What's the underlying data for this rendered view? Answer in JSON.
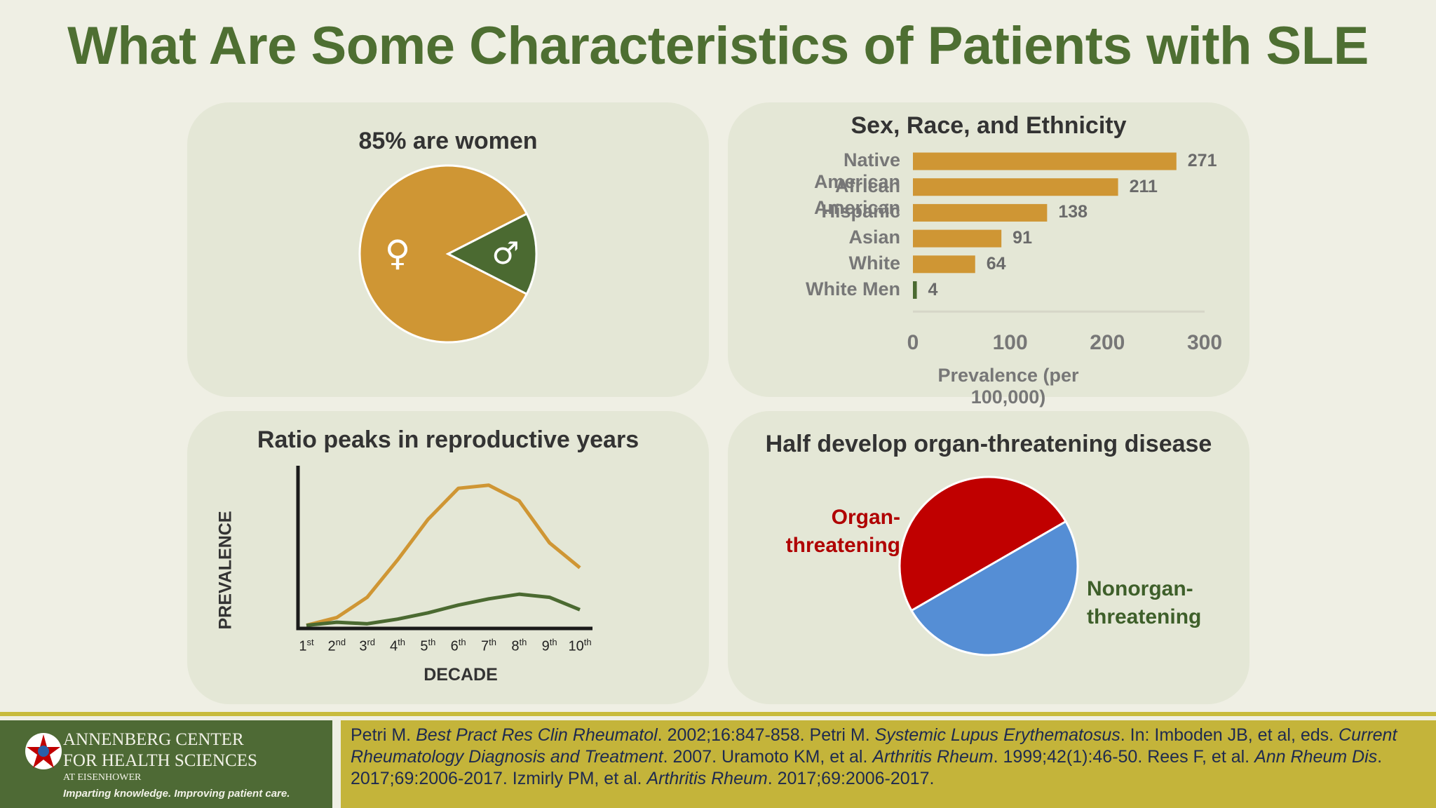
{
  "title": "What Are Some Characteristics of Patients with SLE",
  "panels": {
    "women": {
      "title": "85% are women",
      "female_symbol": "♀",
      "male_symbol": "♂"
    },
    "sex_race": {
      "title": "Sex, Race, and Ethnicity",
      "xlabel": "Prevalence (per 100,000)"
    },
    "ratio": {
      "title": "Ratio peaks in reproductive years",
      "ylabel": "PREVALENCE",
      "xlabel": "DECADE"
    },
    "organ": {
      "title": "Half develop organ-threatening disease",
      "label_organ_1": "Organ-",
      "label_organ_2": "threatening",
      "label_non_1": "Nonorgan-",
      "label_non_2": "threatening"
    }
  },
  "chart_data": [
    {
      "type": "pie",
      "title": "85% are women",
      "slices": [
        {
          "label": "♀",
          "value": 85,
          "color": "#cf9634"
        },
        {
          "label": "♂",
          "value": 15,
          "color": "#4b6a31"
        }
      ]
    },
    {
      "type": "bar",
      "orientation": "horizontal",
      "title": "Sex, Race, and Ethnicity",
      "categories": [
        "Native American",
        "African American",
        "Hispanic",
        "Asian",
        "White",
        "White Men"
      ],
      "values": [
        271,
        211,
        138,
        91,
        64,
        4
      ],
      "value_labels": [
        "271",
        "211",
        "138",
        "91",
        "64",
        "4"
      ],
      "xlabel": "Prevalence (per 100,000)",
      "xlim": [
        0,
        300
      ],
      "xticks": [
        "0",
        "100",
        "200",
        "300"
      ],
      "bar_color": "#cf9634",
      "last_bar_color": "#4b6a31"
    },
    {
      "type": "line",
      "title": "Ratio peaks in reproductive years",
      "xlabel": "DECADE",
      "ylabel": "PREVALENCE",
      "categories": [
        {
          "n": "1",
          "s": "st"
        },
        {
          "n": "2",
          "s": "nd"
        },
        {
          "n": "3",
          "s": "rd"
        },
        {
          "n": "4",
          "s": "th"
        },
        {
          "n": "5",
          "s": "th"
        },
        {
          "n": "6",
          "s": "th"
        },
        {
          "n": "7",
          "s": "th"
        },
        {
          "n": "8",
          "s": "th"
        },
        {
          "n": "9",
          "s": "th"
        },
        {
          "n": "10",
          "s": "th"
        }
      ],
      "ylim": [
        0,
        100
      ],
      "series": [
        {
          "values": [
            2,
            7,
            20,
            44,
            70,
            90,
            92,
            82,
            55,
            39
          ],
          "color": "#cf9634"
        },
        {
          "values": [
            2,
            4,
            3,
            6,
            10,
            15,
            19,
            22,
            20,
            12
          ],
          "color": "#4b6a31"
        }
      ]
    },
    {
      "type": "pie",
      "title": "Half develop organ-threatening disease",
      "slices": [
        {
          "label": "Organ-threatening",
          "value": 50,
          "color": "#c00000"
        },
        {
          "label": "Nonorgan-threatening",
          "value": 50,
          "color": "#558ed5"
        }
      ]
    }
  ],
  "colors": {
    "title": "#4e6f32",
    "organ_label": "#b00000",
    "non_label": "#3e5f2a"
  },
  "footer": {
    "logo_line1": "ANNENBERG CENTER",
    "logo_line2": "FOR HEALTH SCIENCES",
    "logo_line3": "AT EISENHOWER",
    "logo_tagline": "Imparting knowledge. Improving patient care.",
    "refs": [
      {
        "t": "Petri M. "
      },
      {
        "t": "Best Pract Res Clin Rheumatol",
        "i": true
      },
      {
        "t": ". 2002;16:847-858. Petri M. "
      },
      {
        "t": "Systemic Lupus Erythematosus",
        "i": true
      },
      {
        "t": ". In: Imboden JB, et al, eds. "
      },
      {
        "t": "Current Rheumatology Diagnosis and Treatment",
        "i": true
      },
      {
        "t": ". 2007. Uramoto KM, et al. "
      },
      {
        "t": "Arthritis Rheum",
        "i": true
      },
      {
        "t": ". 1999;42(1):46-50. Rees F, et al. "
      },
      {
        "t": "Ann Rheum Dis",
        "i": true
      },
      {
        "t": ". 2017;69:2006-2017. Izmirly PM, et al. "
      },
      {
        "t": "Arthritis Rheum",
        "i": true
      },
      {
        "t": ". 2017;69:2006-2017."
      }
    ]
  }
}
